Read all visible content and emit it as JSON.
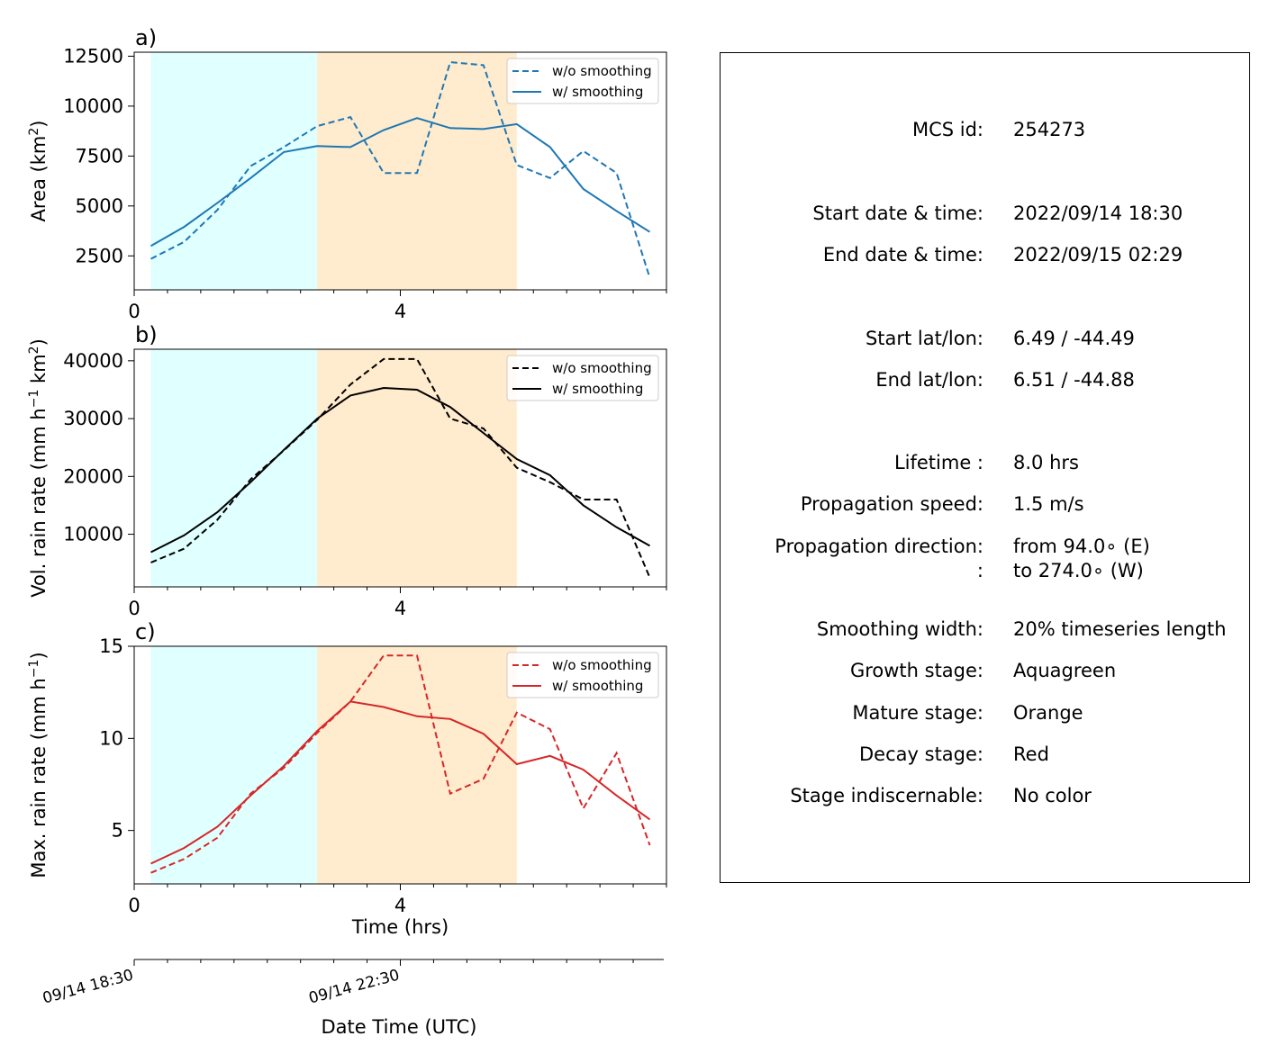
{
  "chart_data": [
    {
      "type": "line",
      "panel_label": "a)",
      "ylabel_main": "Area  (km",
      "ylabel_sup": "2",
      "ylabel_end": ")",
      "xlabel": "",
      "xlim": [
        0,
        8
      ],
      "ylim": [
        800,
        12700
      ],
      "yticks": [
        2500,
        5000,
        7500,
        10000,
        12500
      ],
      "xticks_major": [
        0,
        4
      ],
      "color": "#1f77b4",
      "series": [
        {
          "name": "w/o smoothing",
          "style": "dashed",
          "x": [
            0.25,
            0.75,
            1.25,
            1.75,
            2.25,
            2.75,
            3.25,
            3.75,
            4.25,
            4.75,
            5.25,
            5.75,
            6.25,
            6.75,
            7.25,
            7.75
          ],
          "y": [
            2350,
            3200,
            4800,
            7000,
            7950,
            9000,
            9450,
            6650,
            6650,
            12200,
            12050,
            7050,
            6400,
            7750,
            6650,
            1400
          ]
        },
        {
          "name": "w/ smoothing",
          "style": "solid",
          "x": [
            0.25,
            0.75,
            1.25,
            1.75,
            2.25,
            2.75,
            3.25,
            3.75,
            4.25,
            4.75,
            5.25,
            5.75,
            6.25,
            6.75,
            7.25,
            7.75
          ],
          "y": [
            3000,
            3950,
            5150,
            6400,
            7700,
            8000,
            7950,
            8800,
            9400,
            8900,
            8850,
            9100,
            7950,
            5850,
            4750,
            3700
          ]
        }
      ],
      "stages": [
        {
          "name": "growth",
          "from": 0.25,
          "to": 2.75,
          "color": "#e0ffff"
        },
        {
          "name": "mature",
          "from": 2.75,
          "to": 5.75,
          "color": "#ffebcd"
        }
      ]
    },
    {
      "type": "line",
      "panel_label": "b)",
      "ylabel_main": "Vol. rain rate (mm h",
      "ylabel_sup": "−1",
      "ylabel_mid": " km",
      "ylabel_sup2": "2",
      "ylabel_end": ")",
      "xlabel": "",
      "xlim": [
        0,
        8
      ],
      "ylim": [
        900,
        42000
      ],
      "yticks": [
        10000,
        20000,
        30000,
        40000
      ],
      "xticks_major": [
        0,
        4
      ],
      "color": "#000000",
      "series": [
        {
          "name": "w/o smoothing",
          "style": "dashed",
          "x": [
            0.25,
            0.75,
            1.25,
            1.75,
            2.25,
            2.75,
            3.25,
            3.75,
            4.25,
            4.75,
            5.25,
            5.75,
            6.25,
            6.75,
            7.25,
            7.75
          ],
          "y": [
            5100,
            7500,
            12500,
            19500,
            24500,
            29800,
            35900,
            40300,
            40300,
            30000,
            28300,
            21500,
            19000,
            16000,
            16000,
            2500
          ]
        },
        {
          "name": "w/ smoothing",
          "style": "solid",
          "x": [
            0.25,
            0.75,
            1.25,
            1.75,
            2.25,
            2.75,
            3.25,
            3.75,
            4.25,
            4.75,
            5.25,
            5.75,
            6.25,
            6.75,
            7.25,
            7.75
          ],
          "y": [
            6900,
            9800,
            13800,
            19000,
            24600,
            30000,
            34000,
            35300,
            35000,
            32000,
            27500,
            23000,
            20200,
            15000,
            11200,
            8000
          ]
        }
      ],
      "stages": [
        {
          "name": "growth",
          "from": 0.25,
          "to": 2.75,
          "color": "#e0ffff"
        },
        {
          "name": "mature",
          "from": 2.75,
          "to": 5.75,
          "color": "#ffebcd"
        }
      ]
    },
    {
      "type": "line",
      "panel_label": "c)",
      "ylabel_main": "Max. rain rate  (mm h",
      "ylabel_sup": "−1",
      "ylabel_end": ")",
      "xlabel": "Time (hrs)",
      "xlim": [
        0,
        8
      ],
      "ylim": [
        2.1,
        15
      ],
      "yticks": [
        5,
        10,
        15
      ],
      "xticks_major": [
        0,
        4
      ],
      "color": "#d62728",
      "series": [
        {
          "name": "w/o smoothing",
          "style": "dashed",
          "x": [
            0.25,
            0.75,
            1.25,
            1.75,
            2.25,
            2.75,
            3.25,
            3.75,
            4.25,
            4.75,
            5.25,
            5.75,
            6.25,
            6.75,
            7.25,
            7.75
          ],
          "y": [
            2.7,
            3.45,
            4.6,
            7.0,
            8.4,
            10.3,
            12.0,
            14.5,
            14.5,
            7.0,
            7.8,
            11.4,
            10.5,
            6.2,
            9.2,
            4.2
          ]
        },
        {
          "name": "w/ smoothing",
          "style": "solid",
          "x": [
            0.25,
            0.75,
            1.25,
            1.75,
            2.25,
            2.75,
            3.25,
            3.75,
            4.25,
            4.75,
            5.25,
            5.75,
            6.25,
            6.75,
            7.25,
            7.75
          ],
          "y": [
            3.2,
            4.05,
            5.2,
            6.9,
            8.5,
            10.4,
            12.0,
            11.7,
            11.2,
            11.05,
            10.25,
            8.6,
            9.05,
            8.3,
            6.9,
            5.6
          ]
        }
      ],
      "stages": [
        {
          "name": "growth",
          "from": 0.25,
          "to": 2.75,
          "color": "#e0ffff"
        },
        {
          "name": "mature",
          "from": 2.75,
          "to": 5.75,
          "color": "#ffebcd"
        }
      ]
    }
  ],
  "datetime_axis": {
    "label": "Date Time (UTC)",
    "ticks": [
      "09/14 18:30",
      "09/14 22:30"
    ]
  },
  "info": {
    "rows": [
      {
        "label": "MCS id:",
        "value": "254273"
      },
      {
        "label": "Start date & time:",
        "value": "2022/09/14 18:30"
      },
      {
        "label": "End date & time:",
        "value": "2022/09/15 02:29"
      },
      {
        "label": "Start lat/lon:",
        "value": "6.49 / -44.49"
      },
      {
        "label": "End lat/lon:",
        "value": "6.51 / -44.88"
      },
      {
        "label": "Lifetime :",
        "value": "8.0 hrs"
      },
      {
        "label": "Propagation speed:",
        "value": "1.5 m/s"
      },
      {
        "label": "Propagation direction:",
        "value": "from  94.0∘ (E)"
      },
      {
        "label": ":",
        "value": "to   274.0∘ (W)"
      },
      {
        "label": "Smoothing width:",
        "value": "20% timeseries length"
      },
      {
        "label": "Growth stage:",
        "value": "Aquagreen"
      },
      {
        "label": "Mature stage:",
        "value": "Orange"
      },
      {
        "label": "Decay stage:",
        "value": "Red"
      },
      {
        "label": "Stage indiscernable:",
        "value": "No color"
      }
    ]
  }
}
